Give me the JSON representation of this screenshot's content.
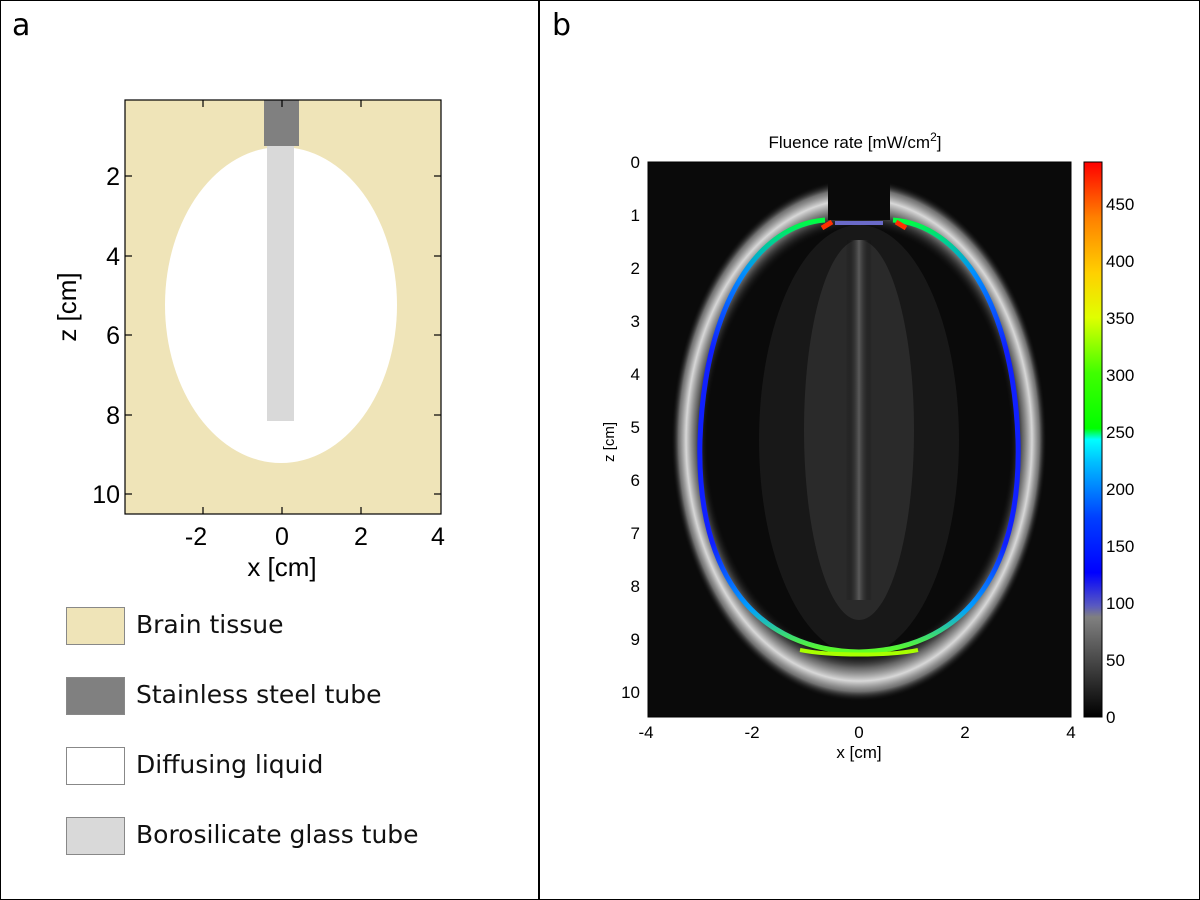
{
  "panel_a": {
    "label": "a",
    "xlabel": "x [cm]",
    "ylabel": "z [cm]",
    "x_ticks": [
      "-2",
      "0",
      "2",
      "4"
    ],
    "z_ticks": [
      "2",
      "4",
      "6",
      "8",
      "10"
    ],
    "xlim": [
      -4,
      4
    ],
    "zlim": [
      0.1,
      10.5
    ],
    "legend": [
      {
        "label": "Brain tissue",
        "color": "#efe4b8"
      },
      {
        "label": "Stainless steel tube",
        "color": "#808080"
      },
      {
        "label": "Diffusing liquid",
        "color": "#ffffff"
      },
      {
        "label": "Borosilicate glass tube",
        "color": "#d9d9d9"
      }
    ]
  },
  "panel_b": {
    "label": "b",
    "title": "Fluence rate [mW/cm",
    "title_sup": "2",
    "title_end": "]",
    "xlabel": "x [cm]",
    "ylabel": "z [cm]",
    "x_ticks": [
      "-4",
      "-2",
      "0",
      "2",
      "4"
    ],
    "z_ticks": [
      "0",
      "1",
      "2",
      "3",
      "4",
      "5",
      "6",
      "7",
      "8",
      "9",
      "10"
    ],
    "colorbar_ticks": [
      "0",
      "50",
      "100",
      "150",
      "200",
      "250",
      "300",
      "350",
      "400",
      "450"
    ],
    "colorbar_range": [
      0,
      490
    ]
  },
  "chart_data": [
    {
      "type": "heatmap",
      "title": "",
      "xlabel": "x [cm]",
      "ylabel": "z [cm]",
      "xlim": [
        -4,
        4
      ],
      "ylim": [
        0.1,
        10.5
      ],
      "regions": [
        "Brain tissue",
        "Stainless steel tube",
        "Diffusing liquid",
        "Borosilicate glass tube"
      ]
    },
    {
      "type": "heatmap",
      "title": "Fluence rate [mW/cm2]",
      "xlabel": "x [cm]",
      "ylabel": "z [cm]",
      "xlim": [
        -4,
        4
      ],
      "ylim": [
        0,
        10.5
      ],
      "colorbar_range": [
        0,
        490
      ],
      "colorbar_ticks": [
        0,
        50,
        100,
        150,
        200,
        250,
        300,
        350,
        400,
        450
      ]
    }
  ]
}
